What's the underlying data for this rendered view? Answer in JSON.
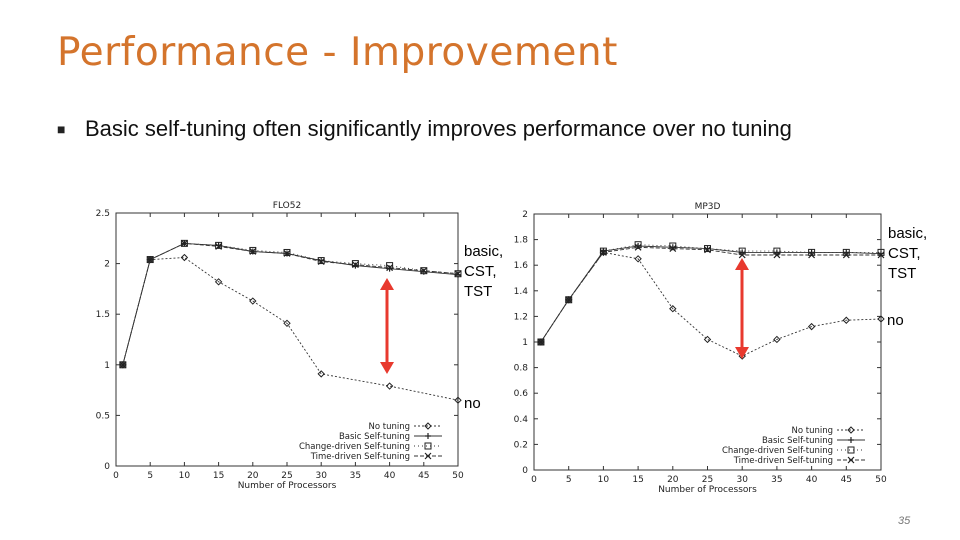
{
  "slide": {
    "title": "Performance - Improvement",
    "bullet": "Basic self-tuning often significantly improves performance over no tuning",
    "page_number": "35",
    "accent_color": "#d4742c",
    "arrow_color": "#e8392e"
  },
  "annotations": {
    "chart1_upper": [
      "basic,",
      "CST,",
      "TST"
    ],
    "chart1_lower": "no",
    "chart2_upper": [
      "basic,",
      "CST,",
      "TST"
    ],
    "chart2_lower": "no"
  },
  "chart_data": [
    {
      "type": "line",
      "title": "FLO52",
      "xlabel": "Number of Processors",
      "ylabel": "",
      "x": [
        1,
        5,
        10,
        15,
        20,
        25,
        30,
        35,
        40,
        45,
        50
      ],
      "xticks": [
        0,
        5,
        10,
        15,
        20,
        25,
        30,
        35,
        40,
        45,
        50
      ],
      "yticks": [
        0,
        0.5,
        1,
        1.5,
        2,
        2.5
      ],
      "xlim": [
        0,
        50
      ],
      "ylim": [
        0,
        2.5
      ],
      "grid": false,
      "legend_position": "bottom-right",
      "series": [
        {
          "name": "No tuning",
          "marker": "diamond",
          "values": [
            1.0,
            2.04,
            2.06,
            1.82,
            1.63,
            1.41,
            0.91,
            null,
            0.79,
            null,
            0.65
          ]
        },
        {
          "name": "Basic Self-tuning",
          "marker": "plus",
          "values": [
            1.0,
            2.04,
            2.2,
            2.18,
            2.12,
            2.1,
            2.03,
            1.98,
            1.95,
            1.92,
            1.89
          ]
        },
        {
          "name": "Change-driven Self-tuning",
          "marker": "square",
          "values": [
            1.0,
            2.04,
            2.2,
            2.18,
            2.13,
            2.11,
            2.03,
            2.0,
            1.98,
            1.93,
            1.9
          ]
        },
        {
          "name": "Time-driven Self-tuning",
          "marker": "cross",
          "values": [
            1.0,
            2.04,
            2.2,
            2.17,
            2.12,
            2.1,
            2.02,
            1.99,
            1.96,
            1.93,
            1.9
          ]
        }
      ]
    },
    {
      "type": "line",
      "title": "MP3D",
      "xlabel": "Number of Processors",
      "ylabel": "",
      "x": [
        1,
        5,
        10,
        15,
        20,
        25,
        30,
        35,
        40,
        45,
        50
      ],
      "xticks": [
        0,
        5,
        10,
        15,
        20,
        25,
        30,
        35,
        40,
        45,
        50
      ],
      "yticks": [
        0,
        0.2,
        0.4,
        0.6,
        0.8,
        1,
        1.2,
        1.4,
        1.6,
        1.8,
        2
      ],
      "xlim": [
        0,
        50
      ],
      "ylim": [
        0,
        2
      ],
      "grid": false,
      "legend_position": "bottom-right",
      "series": [
        {
          "name": "No tuning",
          "marker": "diamond",
          "values": [
            1.0,
            1.33,
            1.7,
            1.65,
            1.26,
            1.02,
            0.89,
            1.02,
            1.12,
            1.17,
            1.18
          ]
        },
        {
          "name": "Basic Self-tuning",
          "marker": "plus",
          "values": [
            1.0,
            1.33,
            1.71,
            1.75,
            1.74,
            1.73,
            1.7,
            1.7,
            1.7,
            1.7,
            1.69
          ]
        },
        {
          "name": "Change-driven Self-tuning",
          "marker": "square",
          "values": [
            1.0,
            1.33,
            1.71,
            1.76,
            1.75,
            1.73,
            1.71,
            1.71,
            1.7,
            1.7,
            1.7
          ]
        },
        {
          "name": "Time-driven Self-tuning",
          "marker": "cross",
          "values": [
            1.0,
            1.33,
            1.7,
            1.74,
            1.73,
            1.72,
            1.68,
            1.68,
            1.68,
            1.68,
            1.68
          ]
        }
      ]
    }
  ]
}
